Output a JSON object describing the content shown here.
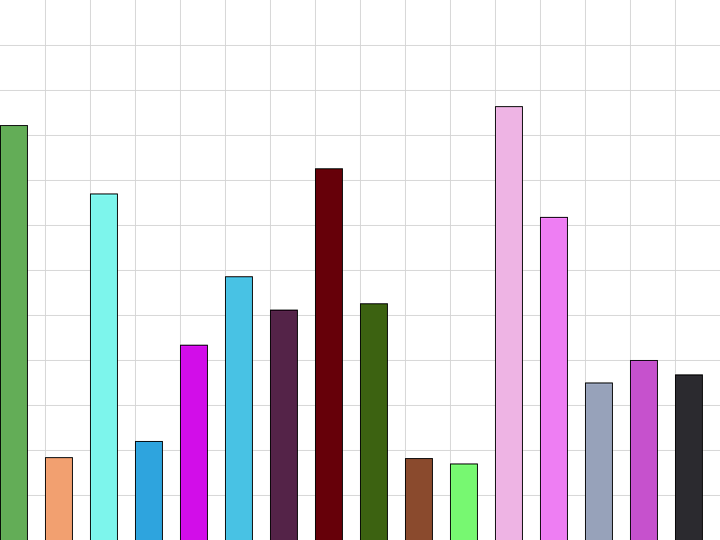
{
  "chart_data": {
    "type": "bar",
    "title": "",
    "xlabel": "",
    "ylabel": "",
    "ylim": [
      0,
      12
    ],
    "grid": true,
    "legend": "none",
    "values": [
      9.22,
      1.84,
      7.7,
      2.2,
      4.34,
      5.86,
      5.12,
      8.26,
      5.26,
      1.82,
      1.7,
      9.64,
      7.18,
      3.5,
      4.0,
      3.68
    ],
    "colors": [
      "#63ad57",
      "#f2a070",
      "#7df5ec",
      "#2ea4de",
      "#d20de9",
      "#48c2e4",
      "#542348",
      "#660009",
      "#3c6211",
      "#8a4a2d",
      "#77f871",
      "#eeb4e4",
      "#ee7ef3",
      "#97a2ba",
      "#c651cd",
      "#2b2a2f"
    ]
  }
}
